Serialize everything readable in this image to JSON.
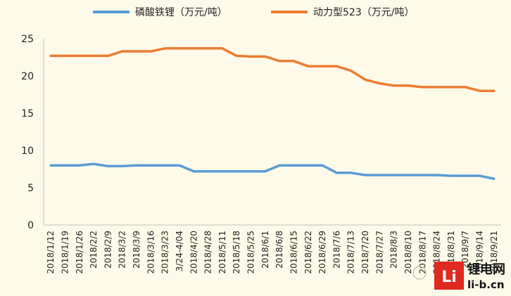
{
  "chart_data": {
    "type": "line",
    "categories": [
      "2018/1/12",
      "2018/1/19",
      "2018/1/26",
      "2018/2/2",
      "2018/2/9",
      "2018/3/2",
      "2018/3/9",
      "2018/3/16",
      "2018/3/23",
      "3/24-4/04",
      "2018/4/20",
      "2018/4/28",
      "2018/5/11",
      "2018/5/18",
      "2018/5/25",
      "2018/6/1",
      "2018/6/8",
      "2018/6/15",
      "2018/6/22",
      "2018/6/29",
      "2018/7/6",
      "2018/7/13",
      "2018/7/20",
      "2018/7/27",
      "2018/8/3",
      "2018/8/10",
      "2018/8/17",
      "2018/8/24",
      "2018/8/31",
      "2018/9/7",
      "2018/9/14",
      "2018/9/21"
    ],
    "series": [
      {
        "name": "磷酸铁锂（万元/吨）",
        "color": "#5b9bd5",
        "values": [
          8,
          8,
          8,
          8.2,
          7.9,
          7.9,
          8,
          8,
          8,
          8,
          7.2,
          7.2,
          7.2,
          7.2,
          7.2,
          7.2,
          8,
          8,
          8,
          8,
          7,
          7,
          6.7,
          6.7,
          6.7,
          6.7,
          6.7,
          6.7,
          6.6,
          6.6,
          6.6,
          6.2
        ]
      },
      {
        "name": "动力型523（万元/吨）",
        "color": "#ed7d31",
        "values": [
          22.7,
          22.7,
          22.7,
          22.7,
          22.7,
          23.3,
          23.3,
          23.3,
          23.7,
          23.7,
          23.7,
          23.7,
          23.7,
          22.7,
          22.6,
          22.6,
          22,
          22,
          21.3,
          21.3,
          21.3,
          20.7,
          19.5,
          19,
          18.7,
          18.7,
          18.5,
          18.5,
          18.5,
          18.5,
          18,
          18
        ]
      }
    ],
    "y_ticks": [
      "0",
      "5",
      "10",
      "15",
      "20",
      "25"
    ],
    "ylim": [
      0,
      25
    ],
    "grid": false,
    "legend_position": "top"
  },
  "watermark": {
    "logo_letter": "Li",
    "brand_cn": "锂电网",
    "brand_en": "li-b.cn"
  }
}
